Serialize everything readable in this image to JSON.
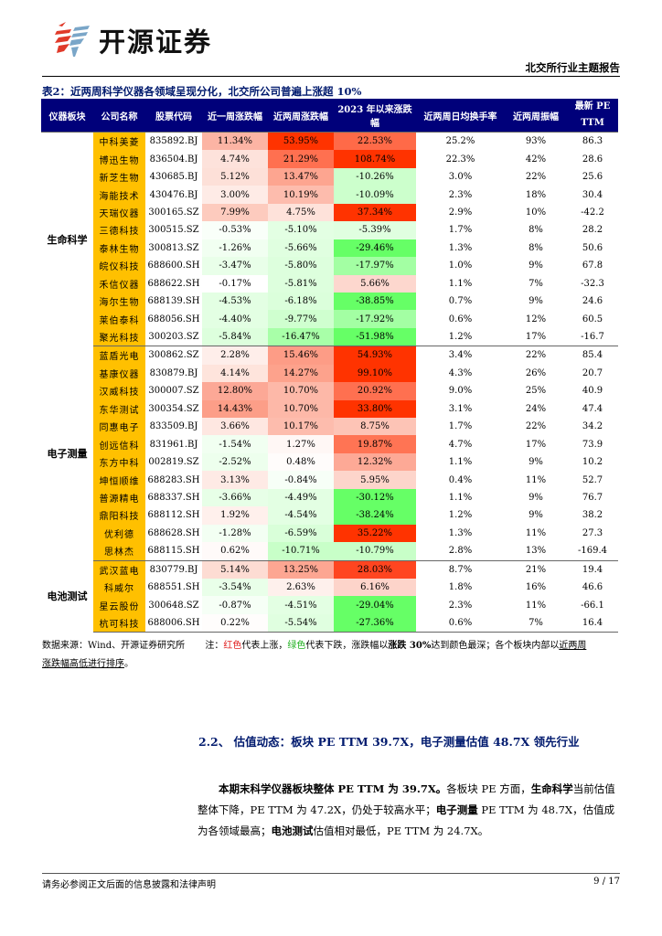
{
  "header": {
    "logo_text": "开源证券",
    "report_type": "北交所行业主题报告"
  },
  "table": {
    "title": "表2：近两周科学仪器各领域呈现分化，北交所公司普遍上涨超 10%",
    "columns": [
      "仪器板块",
      "公司名称",
      "股票代码",
      "近一周涨跌幅",
      "近两周涨跌幅",
      "2023 年以来涨跌幅",
      "近两周日均换手率",
      "近两周振幅",
      "最新 PE",
      "TTM"
    ],
    "groups": [
      {
        "sector": "生命科学",
        "rows": [
          {
            "name": "中科美菱",
            "code": "835892.BJ",
            "w1": "11.34%",
            "w2": "53.95%",
            "ytd": "22.53%",
            "turnover": "25.2%",
            "amp": "93%",
            "pe": "86.3",
            "c1": "#fcb4a4",
            "c2": "#ff3300",
            "c3": "#ff6a48"
          },
          {
            "name": "博迅生物",
            "code": "836504.BJ",
            "w1": "4.74%",
            "w2": "21.29%",
            "ytd": "108.74%",
            "turnover": "22.3%",
            "amp": "42%",
            "pe": "28.6",
            "c1": "#fde2db",
            "c2": "#ff7050",
            "c3": "#ff3300"
          },
          {
            "name": "新芝生物",
            "code": "430685.BJ",
            "w1": "5.12%",
            "w2": "13.47%",
            "ytd": "-10.26%",
            "turnover": "3.0%",
            "amp": "22%",
            "pe": "25.6",
            "c1": "#fde0d8",
            "c2": "#fda590",
            "c3": "#ccffcc"
          },
          {
            "name": "海能技术",
            "code": "430476.BJ",
            "w1": "3.00%",
            "w2": "10.19%",
            "ytd": "-10.09%",
            "turnover": "2.3%",
            "amp": "18%",
            "pe": "30.4",
            "c1": "#feebe6",
            "c2": "#fdbcad",
            "c3": "#ccffcc"
          },
          {
            "name": "天瑞仪器",
            "code": "300165.SZ",
            "w1": "7.99%",
            "w2": "4.75%",
            "ytd": "37.34%",
            "turnover": "2.9%",
            "amp": "10%",
            "pe": "-42.2",
            "c1": "#fdcbbe",
            "c2": "#fee2da",
            "c3": "#ff3300"
          },
          {
            "name": "三德科技",
            "code": "300515.SZ",
            "w1": "-0.53%",
            "w2": "-5.10%",
            "ytd": "-5.39%",
            "turnover": "1.7%",
            "amp": "8%",
            "pe": "28.2",
            "c1": "#f9fff9",
            "c2": "#e3ffe3",
            "c3": "#e0ffe0"
          },
          {
            "name": "泰林生物",
            "code": "300813.SZ",
            "w1": "-1.26%",
            "w2": "-5.66%",
            "ytd": "-29.46%",
            "turnover": "1.3%",
            "amp": "8%",
            "pe": "50.6",
            "c1": "#f1fff1",
            "c2": "#e0ffe0",
            "c3": "#66ff66"
          },
          {
            "name": "皖仪科技",
            "code": "688600.SH",
            "w1": "-3.47%",
            "w2": "-5.80%",
            "ytd": "-17.97%",
            "turnover": "1.0%",
            "amp": "9%",
            "pe": "67.8",
            "c1": "#e9ffe9",
            "c2": "#ddffdd",
            "c3": "#a3ffa3"
          },
          {
            "name": "禾信仪器",
            "code": "688622.SH",
            "w1": "-0.17%",
            "w2": "-5.81%",
            "ytd": "5.66%",
            "turnover": "1.1%",
            "amp": "7%",
            "pe": "-32.3",
            "c1": "#ffffff",
            "c2": "#ddffdd",
            "c3": "#fdd7ce"
          },
          {
            "name": "海尔生物",
            "code": "688139.SH",
            "w1": "-4.53%",
            "w2": "-6.18%",
            "ytd": "-38.85%",
            "turnover": "0.7%",
            "amp": "9%",
            "pe": "24.6",
            "c1": "#e3ffe3",
            "c2": "#dbffdb",
            "c3": "#66ff66"
          },
          {
            "name": "莱伯泰科",
            "code": "688056.SH",
            "w1": "-4.40%",
            "w2": "-9.77%",
            "ytd": "-17.92%",
            "turnover": "0.6%",
            "amp": "12%",
            "pe": "60.5",
            "c1": "#e3ffe3",
            "c2": "#cfffcf",
            "c3": "#a3ffa3"
          },
          {
            "name": "聚光科技",
            "code": "300203.SZ",
            "w1": "-5.84%",
            "w2": "-16.47%",
            "ytd": "-51.98%",
            "turnover": "1.2%",
            "amp": "17%",
            "pe": "-16.7",
            "c1": "#ddffdd",
            "c2": "#a8ffa8",
            "c3": "#66ff66"
          }
        ]
      },
      {
        "sector": "电子测量",
        "rows": [
          {
            "name": "蓝盾光电",
            "code": "300862.SZ",
            "w1": "2.28%",
            "w2": "15.46%",
            "ytd": "54.93%",
            "turnover": "3.4%",
            "amp": "22%",
            "pe": "85.4",
            "c1": "#feeeea",
            "c2": "#fd9c86",
            "c3": "#ff3300"
          },
          {
            "name": "基康仪器",
            "code": "830879.BJ",
            "w1": "4.14%",
            "w2": "14.27%",
            "ytd": "99.10%",
            "turnover": "4.3%",
            "amp": "26%",
            "pe": "20.7",
            "c1": "#fee4dc",
            "c2": "#fda28c",
            "c3": "#ff3300"
          },
          {
            "name": "汉威科技",
            "code": "300007.SZ",
            "w1": "12.80%",
            "w2": "10.70%",
            "ytd": "20.92%",
            "turnover": "9.0%",
            "amp": "25%",
            "pe": "40.9",
            "c1": "#fca896",
            "c2": "#fdb8a8",
            "c3": "#ff7050"
          },
          {
            "name": "东华测试",
            "code": "300354.SZ",
            "w1": "14.43%",
            "w2": "10.70%",
            "ytd": "33.80%",
            "turnover": "3.1%",
            "amp": "24%",
            "pe": "47.4",
            "c1": "#fc9e88",
            "c2": "#fdb8a8",
            "c3": "#ff3300"
          },
          {
            "name": "同惠电子",
            "code": "833509.BJ",
            "w1": "3.66%",
            "w2": "10.17%",
            "ytd": "8.75%",
            "turnover": "1.7%",
            "amp": "22%",
            "pe": "34.2",
            "c1": "#fee7e1",
            "c2": "#fdbcad",
            "c3": "#fdc4b6"
          },
          {
            "name": "创远信科",
            "code": "831961.BJ",
            "w1": "-1.54%",
            "w2": "1.27%",
            "ytd": "19.87%",
            "turnover": "4.7%",
            "amp": "17%",
            "pe": "73.9",
            "c1": "#f1fff1",
            "c2": "#fff7f5",
            "c3": "#ff7454"
          },
          {
            "name": "东方中科",
            "code": "002819.SZ",
            "w1": "-2.52%",
            "w2": "0.48%",
            "ytd": "12.32%",
            "turnover": "1.1%",
            "amp": "9%",
            "pe": "10.2",
            "c1": "#edffed",
            "c2": "#fffcfb",
            "c3": "#fda996"
          },
          {
            "name": "坤恒顺维",
            "code": "688283.SH",
            "w1": "3.13%",
            "w2": "-0.84%",
            "ytd": "5.95%",
            "turnover": "0.4%",
            "amp": "11%",
            "pe": "52.7",
            "c1": "#feeae5",
            "c2": "#f7fff7",
            "c3": "#fdd5cb"
          },
          {
            "name": "普源精电",
            "code": "688337.SH",
            "w1": "-3.66%",
            "w2": "-4.49%",
            "ytd": "-30.12%",
            "turnover": "1.1%",
            "amp": "9%",
            "pe": "76.7",
            "c1": "#e7ffe7",
            "c2": "#e3ffe3",
            "c3": "#66ff66"
          },
          {
            "name": "鼎阳科技",
            "code": "688112.SH",
            "w1": "1.92%",
            "w2": "-4.54%",
            "ytd": "-38.24%",
            "turnover": "1.2%",
            "amp": "9%",
            "pe": "38.2",
            "c1": "#fff0ec",
            "c2": "#e3ffe3",
            "c3": "#66ff66"
          },
          {
            "name": "优利德",
            "code": "688628.SH",
            "w1": "-1.28%",
            "w2": "-6.59%",
            "ytd": "35.22%",
            "turnover": "1.3%",
            "amp": "11%",
            "pe": "27.3",
            "c1": "#f3fff3",
            "c2": "#d9ffd9",
            "c3": "#ff3300"
          },
          {
            "name": "思林杰",
            "code": "688115.SH",
            "w1": "0.62%",
            "w2": "-10.71%",
            "ytd": "-10.79%",
            "turnover": "2.8%",
            "amp": "13%",
            "pe": "-169.4",
            "c1": "#fffaf9",
            "c2": "#c8ffc8",
            "c3": "#c8ffc8"
          }
        ]
      },
      {
        "sector": "电池测试",
        "rows": [
          {
            "name": "武汉蓝电",
            "code": "830779.BJ",
            "w1": "5.14%",
            "w2": "13.25%",
            "ytd": "28.03%",
            "turnover": "8.7%",
            "amp": "21%",
            "pe": "19.4",
            "c1": "#fddcd3",
            "c2": "#fda692",
            "c3": "#ff4520"
          },
          {
            "name": "科威尔",
            "code": "688551.SH",
            "w1": "-3.54%",
            "w2": "2.63%",
            "ytd": "6.16%",
            "turnover": "1.8%",
            "amp": "16%",
            "pe": "46.6",
            "c1": "#e9ffe9",
            "c2": "#fef0ec",
            "c3": "#fdd4ca"
          },
          {
            "name": "星云股份",
            "code": "300648.SZ",
            "w1": "-0.87%",
            "w2": "-4.51%",
            "ytd": "-29.04%",
            "turnover": "2.3%",
            "amp": "11%",
            "pe": "-66.1",
            "c1": "#f6fff6",
            "c2": "#e3ffe3",
            "c3": "#66ff66"
          },
          {
            "name": "杭可科技",
            "code": "688006.SH",
            "w1": "0.22%",
            "w2": "-5.54%",
            "ytd": "-27.36%",
            "turnover": "0.6%",
            "amp": "7%",
            "pe": "16.4",
            "c1": "#fffdfc",
            "c2": "#e0ffe0",
            "c3": "#66ff66"
          }
        ]
      }
    ]
  },
  "footnote": {
    "source": "数据来源：Wind、开源证券研究所",
    "note_prefix": "注：",
    "red_word": "红色",
    "mid1": "代表上涨，",
    "green_word": "绿色",
    "mid2": "代表下跌，涨跌幅以",
    "bold_part": "涨跌 30%",
    "mid3": "达到颜色最深；各个板块内部以",
    "underlined_a": "近两周",
    "underlined_b": "涨跌幅高低进行排序",
    "end": "。"
  },
  "section": {
    "heading": "2.2、 估值动态：板块 PE TTM 39.7X，电子测量估值 48.7X 领先行业",
    "p_bold1": "本期末科学仪器板块整体 PE TTM 为 39.7X。",
    "p_text1": "各板块 PE 方面，",
    "p_bold2": "生命科学",
    "p_text2": "当前估值整体下降，PE TTM 为 47.2X，仍处于较高水平；",
    "p_bold3": "电子测量",
    "p_text3": " PE TTM 为 48.7X，估值成为各领域最高；",
    "p_bold4": "电池测试",
    "p_text4": "估值相对最低，PE TTM 为 24.7X。"
  },
  "footer": {
    "disclaimer": "请务必参阅正文后面的信息披露和法律声明",
    "page": "9 / 17"
  },
  "colors": {
    "header_bg": "#00007a",
    "company_bg": "#ffc000",
    "heading_blue": "#001a6e",
    "logo_red": "#e03a2a",
    "logo_blue": "#7aa6c8"
  }
}
